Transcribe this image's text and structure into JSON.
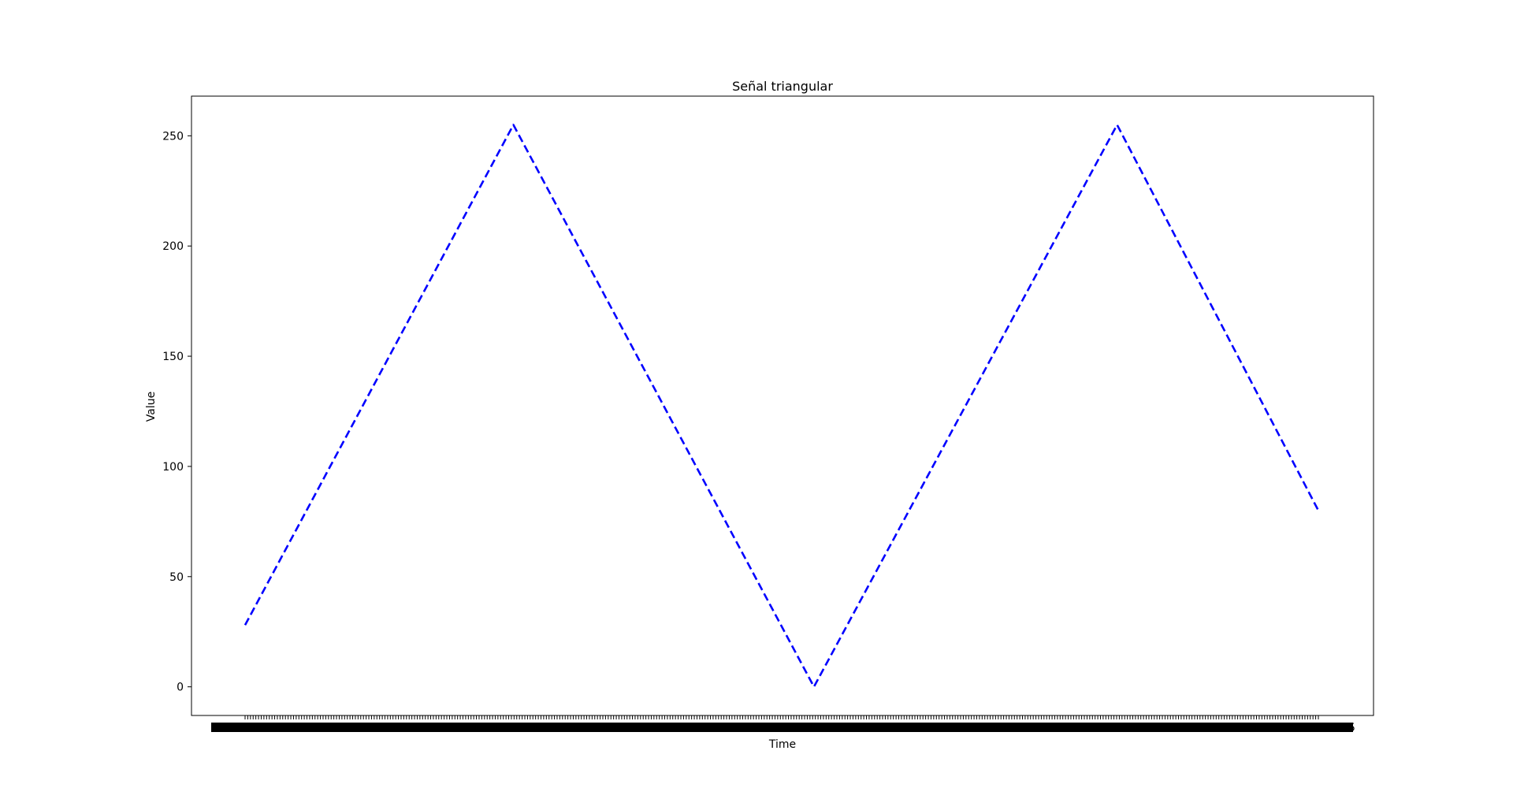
{
  "chart_data": {
    "type": "line",
    "title": "Señal triangular",
    "xlabel": "Time",
    "ylabel": "Value",
    "ylim": [
      -13,
      268
    ],
    "yticks": [
      0,
      50,
      100,
      150,
      200,
      250
    ],
    "ytick_labels": [
      "0",
      "50",
      "100",
      "150",
      "200",
      "250"
    ],
    "x_tick_count": 400,
    "x_tick_labels_legible": false,
    "grid": false,
    "series": [
      {
        "color": "#0000ff",
        "line_style": "dashed",
        "x_index": [
          0,
          100,
          212,
          325,
          400
        ],
        "values": [
          28,
          255,
          0,
          255,
          80
        ]
      }
    ]
  }
}
